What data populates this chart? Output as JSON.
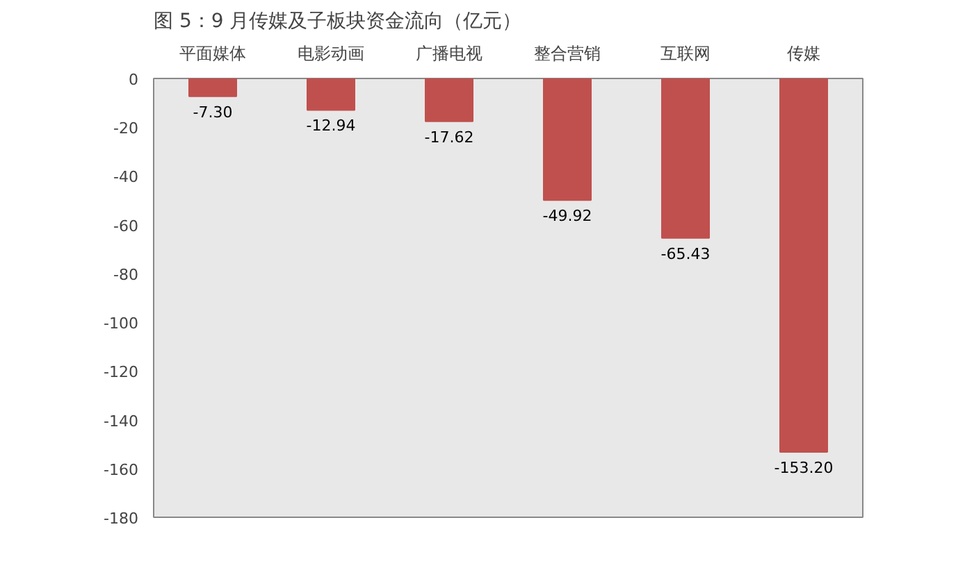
{
  "chart_data": {
    "type": "bar",
    "title": "图 5：9 月传媒及子板块资金流向（亿元）",
    "categories": [
      "平面媒体",
      "电影动画",
      "广播电视",
      "整合营销",
      "互联网",
      "传媒"
    ],
    "values": [
      -7.3,
      -12.94,
      -17.62,
      -49.92,
      -65.43,
      -153.2
    ],
    "value_labels": [
      "-7.30",
      "-12.94",
      "-17.62",
      "-49.92",
      "-65.43",
      "-153.20"
    ],
    "color": "#c0504d",
    "ylim": [
      -180,
      0
    ],
    "yticks": [
      0,
      -20,
      -40,
      -60,
      -80,
      -100,
      -120,
      -140,
      -160,
      -180
    ],
    "grid": false
  }
}
